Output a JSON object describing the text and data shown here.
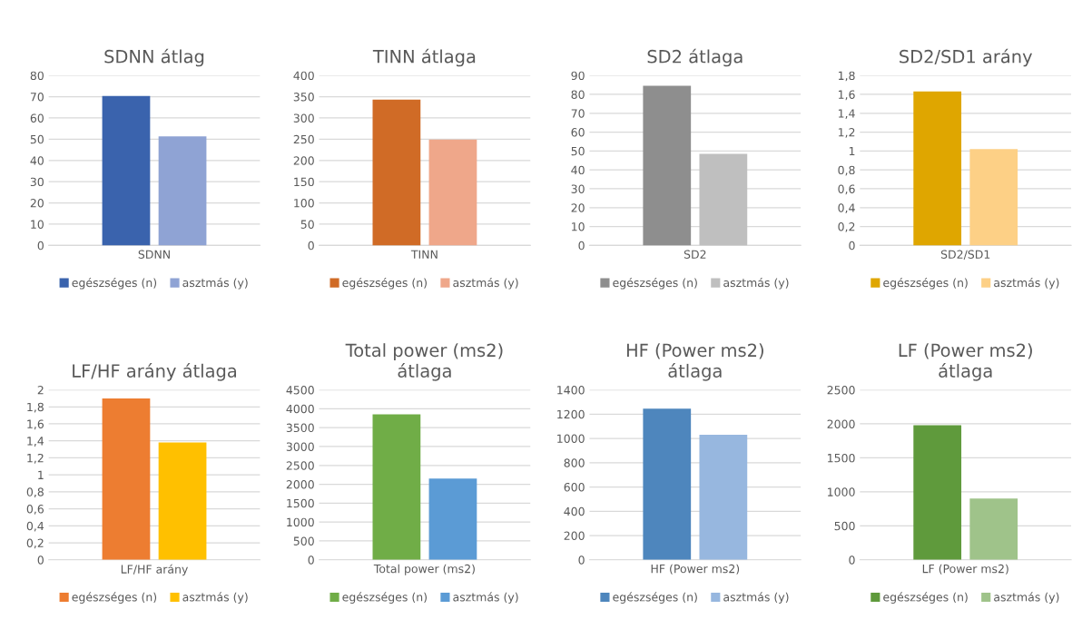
{
  "chart_data": [
    {
      "type": "bar",
      "title": "SDNN átlag",
      "categories": [
        "SDNN"
      ],
      "series": [
        {
          "name": "egészséges (n)",
          "color": "#3a63ad",
          "values": [
            70.3
          ]
        },
        {
          "name": "asztmás (y)",
          "color": "#8fa3d4",
          "values": [
            51.3
          ]
        }
      ],
      "ylim": [
        0,
        80
      ],
      "yticks": [
        0,
        10,
        20,
        30,
        40,
        50,
        60,
        70,
        80
      ],
      "grid": "y",
      "legend": "bottom"
    },
    {
      "type": "bar",
      "title": "TINN átlaga",
      "categories": [
        "TINN"
      ],
      "series": [
        {
          "name": "egészséges (n)",
          "color": "#d06b26",
          "values": [
            343
          ]
        },
        {
          "name": "asztmás (y)",
          "color": "#efa78a",
          "values": [
            249
          ]
        }
      ],
      "ylim": [
        0,
        400
      ],
      "yticks": [
        0,
        50,
        100,
        150,
        200,
        250,
        300,
        350,
        400
      ],
      "grid": "y",
      "legend": "bottom"
    },
    {
      "type": "bar",
      "title": "SD2 átlaga",
      "categories": [
        "SD2"
      ],
      "series": [
        {
          "name": "egészséges (n)",
          "color": "#8e8e8e",
          "values": [
            84.5
          ]
        },
        {
          "name": "asztmás (y)",
          "color": "#bfbfbf",
          "values": [
            48.5
          ]
        }
      ],
      "ylim": [
        0,
        90
      ],
      "yticks": [
        0,
        10,
        20,
        30,
        40,
        50,
        60,
        70,
        80,
        90
      ],
      "grid": "y",
      "legend": "bottom"
    },
    {
      "type": "bar",
      "title": "SD2/SD1 arány",
      "categories": [
        "SD2/SD1"
      ],
      "series": [
        {
          "name": "egészséges (n)",
          "color": "#dfa600",
          "values": [
            1.63
          ]
        },
        {
          "name": "asztmás (y)",
          "color": "#fdd086",
          "values": [
            1.02
          ]
        }
      ],
      "ylim": [
        0,
        1.8
      ],
      "yticks": [
        0,
        {
          "value": 0.2,
          "label": "0,2"
        },
        {
          "value": 0.4,
          "label": "0,4"
        },
        {
          "value": 0.6,
          "label": "0,6"
        },
        {
          "value": 0.8,
          "label": "0,8"
        },
        1,
        {
          "value": 1.2,
          "label": "1,2"
        },
        {
          "value": 1.4,
          "label": "1,4"
        },
        {
          "value": 1.6,
          "label": "1,6"
        },
        {
          "value": 1.8,
          "label": "1,8"
        }
      ],
      "grid": "y",
      "legend": "bottom"
    },
    {
      "type": "bar",
      "title": "LF/HF arány átlaga",
      "categories": [
        "LF/HF arány"
      ],
      "series": [
        {
          "name": "egészséges (n)",
          "color": "#ed7d31",
          "values": [
            1.9
          ]
        },
        {
          "name": "asztmás (y)",
          "color": "#ffc000",
          "values": [
            1.38
          ]
        }
      ],
      "ylim": [
        0,
        2
      ],
      "yticks": [
        0,
        {
          "value": 0.2,
          "label": "0,2"
        },
        {
          "value": 0.4,
          "label": "0,4"
        },
        {
          "value": 0.6,
          "label": "0,6"
        },
        {
          "value": 0.8,
          "label": "0,8"
        },
        1,
        {
          "value": 1.2,
          "label": "1,2"
        },
        {
          "value": 1.4,
          "label": "1,4"
        },
        {
          "value": 1.6,
          "label": "1,6"
        },
        {
          "value": 1.8,
          "label": "1,8"
        },
        2
      ],
      "grid": "y",
      "legend": "bottom"
    },
    {
      "type": "bar",
      "title": "Total power (ms2)\nátlaga",
      "categories": [
        "Total power (ms2)"
      ],
      "series": [
        {
          "name": "egészséges (n)",
          "color": "#70ad47",
          "values": [
            3850
          ]
        },
        {
          "name": "asztmás (y)",
          "color": "#5b9bd5",
          "values": [
            2150
          ]
        }
      ],
      "ylim": [
        0,
        4500
      ],
      "yticks": [
        0,
        500,
        1000,
        1500,
        2000,
        2500,
        3000,
        3500,
        4000,
        4500
      ],
      "grid": "y",
      "legend": "bottom"
    },
    {
      "type": "bar",
      "title": "HF (Power ms2)\nátlaga",
      "categories": [
        "HF (Power ms2)"
      ],
      "series": [
        {
          "name": "egészséges (n)",
          "color": "#4e86bd",
          "values": [
            1245
          ]
        },
        {
          "name": "asztmás (y)",
          "color": "#97b7df",
          "values": [
            1030
          ]
        }
      ],
      "ylim": [
        0,
        1400
      ],
      "yticks": [
        0,
        200,
        400,
        600,
        800,
        1000,
        1200,
        1400
      ],
      "grid": "y",
      "legend": "bottom"
    },
    {
      "type": "bar",
      "title": "LF (Power ms2)\nátlaga",
      "categories": [
        "LF (Power ms2)"
      ],
      "series": [
        {
          "name": "egészséges (n)",
          "color": "#5f9a3c",
          "values": [
            1980
          ]
        },
        {
          "name": "asztmás (y)",
          "color": "#9fc38a",
          "values": [
            900
          ]
        }
      ],
      "ylim": [
        0,
        2500
      ],
      "yticks": [
        0,
        500,
        1000,
        1500,
        2000,
        2500
      ],
      "grid": "y",
      "legend": "bottom"
    }
  ]
}
